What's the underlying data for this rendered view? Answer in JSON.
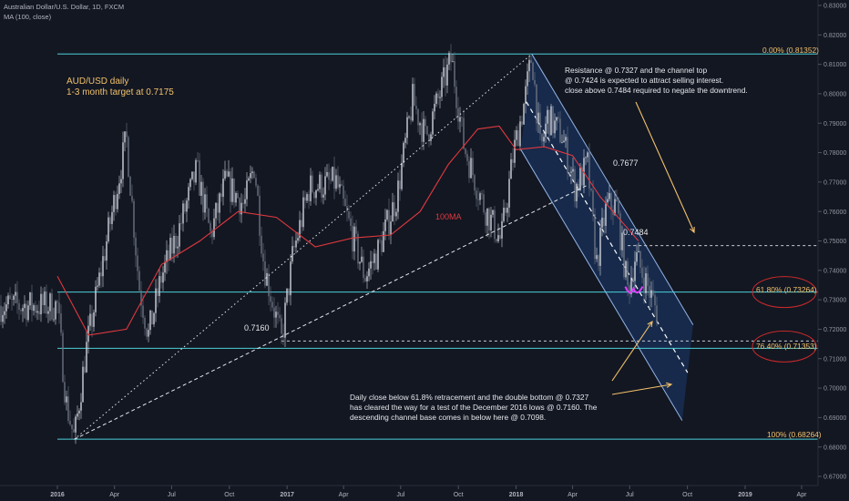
{
  "header": {
    "symbol_line": "Australian Dollar/U.S. Dollar, 1D, FXCM",
    "indicator_line": "MA (100, close)"
  },
  "chart_data": {
    "type": "candlestick",
    "y_ticks": [
      "0.83000",
      "0.82000",
      "0.81000",
      "0.80000",
      "0.79000",
      "0.78000",
      "0.77000",
      "0.76000",
      "0.75000",
      "0.74000",
      "0.73000",
      "0.72000",
      "0.71000",
      "0.70000",
      "0.69000",
      "0.68000",
      "0.67000"
    ],
    "ylim": [
      0.666,
      0.832
    ],
    "x_ticks": [
      "2016",
      "Apr",
      "Jul",
      "Oct",
      "2017",
      "Apr",
      "Jul",
      "Oct",
      "2018",
      "Apr",
      "Jul",
      "Oct",
      "2019",
      "Apr"
    ],
    "x_tick_dates": [
      "2016-01",
      "2016-04",
      "2016-07",
      "2016-10",
      "2017-01",
      "2017-04",
      "2017-07",
      "2017-10",
      "2018-01",
      "2018-04",
      "2018-07",
      "2018-10",
      "2019-01",
      "2019-04"
    ],
    "grid": false,
    "price_path": [
      [
        "2016-01-01",
        0.728
      ],
      [
        "2016-01-15",
        0.695
      ],
      [
        "2016-01-28",
        0.6826
      ],
      [
        "2016-02-15",
        0.712
      ],
      [
        "2016-03-15",
        0.745
      ],
      [
        "2016-04-20",
        0.785
      ],
      [
        "2016-05-10",
        0.735
      ],
      [
        "2016-05-25",
        0.718
      ],
      [
        "2016-06-15",
        0.738
      ],
      [
        "2016-07-10",
        0.752
      ],
      [
        "2016-08-10",
        0.774
      ],
      [
        "2016-09-01",
        0.752
      ],
      [
        "2016-09-25",
        0.77
      ],
      [
        "2016-10-25",
        0.762
      ],
      [
        "2016-11-10",
        0.776
      ],
      [
        "2016-11-25",
        0.742
      ],
      [
        "2016-12-23",
        0.716
      ],
      [
        "2017-01-10",
        0.745
      ],
      [
        "2017-02-05",
        0.768
      ],
      [
        "2017-03-20",
        0.77
      ],
      [
        "2017-05-05",
        0.738
      ],
      [
        "2017-05-25",
        0.746
      ],
      [
        "2017-06-25",
        0.765
      ],
      [
        "2017-07-20",
        0.798
      ],
      [
        "2017-08-10",
        0.785
      ],
      [
        "2017-09-20",
        0.812
      ],
      [
        "2017-10-10",
        0.782
      ],
      [
        "2017-11-10",
        0.762
      ],
      [
        "2017-12-08",
        0.75
      ],
      [
        "2017-12-28",
        0.78
      ],
      [
        "2018-01-15",
        0.798
      ],
      [
        "2018-01-26",
        0.8135
      ],
      [
        "2018-02-09",
        0.78
      ],
      [
        "2018-02-20",
        0.792
      ],
      [
        "2018-03-15",
        0.786
      ],
      [
        "2018-04-05",
        0.768
      ],
      [
        "2018-04-25",
        0.776
      ],
      [
        "2018-05-09",
        0.742
      ],
      [
        "2018-05-25",
        0.762
      ],
      [
        "2018-06-10",
        0.762
      ],
      [
        "2018-06-28",
        0.733
      ],
      [
        "2018-07-10",
        0.745
      ],
      [
        "2018-07-25",
        0.737
      ],
      [
        "2018-08-15",
        0.725
      ]
    ],
    "series": [
      {
        "name": "100MA",
        "color": "#e0393e",
        "values": [
          [
            "2016-01-01",
            0.738
          ],
          [
            "2016-02-20",
            0.718
          ],
          [
            "2016-04-20",
            0.72
          ],
          [
            "2016-06-15",
            0.742
          ],
          [
            "2016-08-15",
            0.75
          ],
          [
            "2016-10-15",
            0.76
          ],
          [
            "2016-12-15",
            0.758
          ],
          [
            "2017-02-15",
            0.748
          ],
          [
            "2017-04-15",
            0.751
          ],
          [
            "2017-06-15",
            0.752
          ],
          [
            "2017-08-01",
            0.76
          ],
          [
            "2017-09-15",
            0.776
          ],
          [
            "2017-11-01",
            0.788
          ],
          [
            "2017-12-05",
            0.789
          ],
          [
            "2018-01-01",
            0.781
          ],
          [
            "2018-02-15",
            0.782
          ],
          [
            "2018-04-01",
            0.779
          ],
          [
            "2018-05-15",
            0.765
          ],
          [
            "2018-07-15",
            0.75
          ]
        ]
      }
    ]
  },
  "annotations": {
    "title_line1": "AUD/USD daily",
    "title_line2": "1-3 month target at 0.7175",
    "note_top_1": "Resistance @ 0.7327 and the channel top",
    "note_top_2": "@ 0.7424 is expected to attract selling interest.",
    "note_top_3": "close above 0.7484 required to negate the downtrend.",
    "note_bottom_1": "Daily close below 61.8% retracement and the double bottom @ 0.7327",
    "note_bottom_2": "has cleared the way for a test of the December 2016 lows @ 0.7160. The",
    "note_bottom_3": "descending channel base comes in below here @ 0.7098.",
    "label_7677": "0.7677",
    "label_7484": "0.7484",
    "label_7160": "0.7160",
    "ma_label": "100MA",
    "fib_0": "0.00% (0.81352)",
    "fib_618": "61.80% (0.73264)",
    "fib_764": "76.40% (0.71353)",
    "fib_100": "100% (0.68264)"
  },
  "levels": {
    "fib_0": 0.81352,
    "fib_618": 0.73264,
    "fib_764": 0.71353,
    "fib_100": 0.68264,
    "resistance_7484": 0.7484,
    "support_7160": 0.716
  },
  "colors": {
    "background": "#131722",
    "candle_up": "#d1d4dc",
    "candle_down": "#6b7280",
    "fib_line": "#4cd0d8",
    "fib_label": "#f2c16b",
    "annotation_yellow": "#f2c16b",
    "channel_fill": "#1c3a6e",
    "channel_edge": "#93b4e6",
    "ma": "#e0393e",
    "double_bottom": "#e040fb",
    "ellipse": "#cc2a2a",
    "text_white": "#e5e7eb"
  }
}
